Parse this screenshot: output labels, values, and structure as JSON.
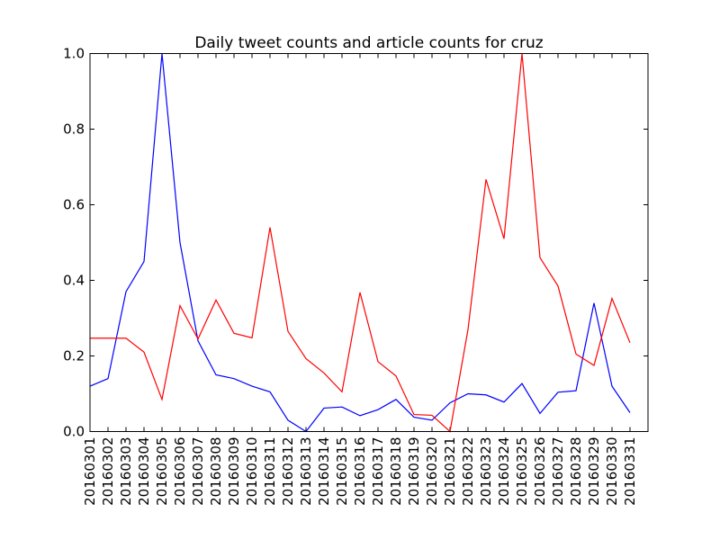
{
  "chart_data": {
    "type": "line",
    "title": "Daily tweet counts and article counts for cruz",
    "xlabel": "",
    "ylabel": "",
    "ylim": [
      0,
      1
    ],
    "yticks": [
      "0.0",
      "0.2",
      "0.4",
      "0.6",
      "0.8",
      "1.0"
    ],
    "categories": [
      "20160301",
      "20160302",
      "20160303",
      "20160304",
      "20160305",
      "20160306",
      "20160307",
      "20160308",
      "20160309",
      "20160310",
      "20160311",
      "20160312",
      "20160313",
      "20160314",
      "20160315",
      "20160316",
      "20160317",
      "20160318",
      "20160319",
      "20160320",
      "20160321",
      "20160322",
      "20160323",
      "20160324",
      "20160325",
      "20160326",
      "20160327",
      "20160328",
      "20160329",
      "20160330",
      "20160331"
    ],
    "grid": false,
    "series": [
      {
        "color": "#0000ff",
        "values": [
          0.12,
          0.14,
          0.37,
          0.45,
          1.0,
          0.5,
          0.24,
          0.15,
          0.14,
          0.12,
          0.105,
          0.03,
          0.0,
          0.062,
          0.065,
          0.042,
          0.058,
          0.085,
          0.038,
          0.03,
          0.076,
          0.1,
          0.097,
          0.078,
          0.127,
          0.048,
          0.104,
          0.108,
          0.34,
          0.12,
          0.05
        ]
      },
      {
        "color": "#ff0000",
        "values": [
          0.247,
          0.247,
          0.247,
          0.21,
          0.085,
          0.333,
          0.245,
          0.348,
          0.26,
          0.248,
          0.54,
          0.265,
          0.193,
          0.155,
          0.105,
          0.368,
          0.185,
          0.147,
          0.045,
          0.043,
          0.0,
          0.27,
          0.667,
          0.51,
          1.0,
          0.46,
          0.385,
          0.205,
          0.175,
          0.352,
          0.235
        ]
      }
    ]
  }
}
